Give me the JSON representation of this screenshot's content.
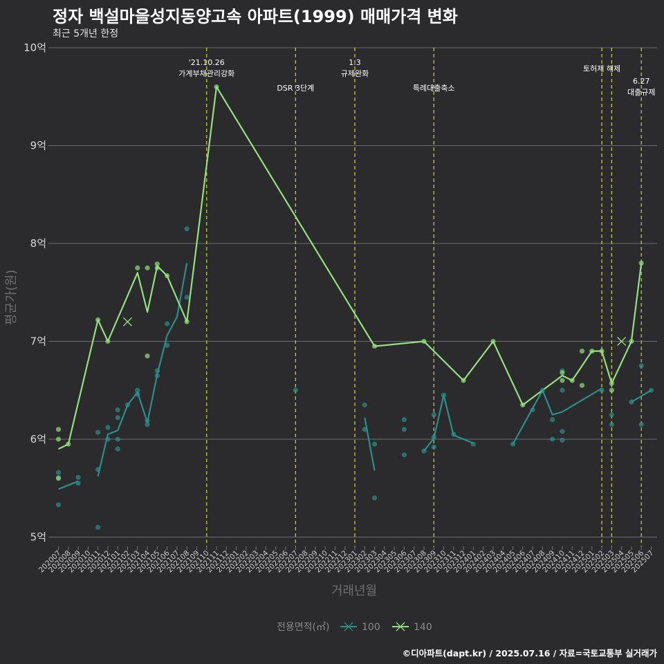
{
  "header": {
    "title": "정자 백설마을성지동양고속 아파트(1999) 매매가격 변화",
    "subtitle": "최근 5개년 한정"
  },
  "caption": "©디아파트(dapt.kr) / 2025.07.16 / 자료=국토교통부 실거래가",
  "chart_data": {
    "type": "line",
    "xlabel": "거래년월",
    "ylabel": "평균가(원)",
    "ylim": [
      4.85,
      10.0
    ],
    "y_ticks": [
      {
        "value": 5,
        "label": "5억"
      },
      {
        "value": 6,
        "label": "6억"
      },
      {
        "value": 7,
        "label": "7억"
      },
      {
        "value": 8,
        "label": "8억"
      },
      {
        "value": 9,
        "label": "9억"
      },
      {
        "value": 10,
        "label": "10억"
      }
    ],
    "categories": [
      "202007",
      "202008",
      "202009",
      "202010",
      "202011",
      "202012",
      "202101",
      "202102",
      "202103",
      "202104",
      "202105",
      "202106",
      "202107",
      "202108",
      "202109",
      "202110",
      "202111",
      "202112",
      "202201",
      "202202",
      "202203",
      "202204",
      "202205",
      "202206",
      "202207",
      "202208",
      "202209",
      "202210",
      "202211",
      "202212",
      "202301",
      "202302",
      "202303",
      "202304",
      "202305",
      "202306",
      "202307",
      "202308",
      "202309",
      "202310",
      "202311",
      "202312",
      "202401",
      "202402",
      "202403",
      "202404",
      "202405",
      "202406",
      "202407",
      "202408",
      "202409",
      "202410",
      "202411",
      "202412",
      "202501",
      "202502",
      "202503",
      "202504",
      "202505",
      "202506",
      "202507"
    ],
    "events": [
      {
        "date": "202110",
        "lines": [
          "'21.10.26",
          "가계부채관리강화"
        ],
        "level": 0
      },
      {
        "date": "202207",
        "lines": [
          "DSR 3단계"
        ],
        "level": 2
      },
      {
        "date": "202301",
        "lines": [
          "1.3",
          "규제완화"
        ],
        "level": 0
      },
      {
        "date": "202309",
        "lines": [
          "특례대출축소"
        ],
        "level": 2
      },
      {
        "date": "202502",
        "lines": [
          "토허제 해제"
        ],
        "level": 1
      },
      {
        "date": "202503",
        "lines": [],
        "level": 1
      },
      {
        "date": "202506",
        "lines": [
          "6.27",
          "대출규제"
        ],
        "level": 3
      }
    ],
    "series": [
      {
        "name": "100",
        "color": "#2a8f8c",
        "segments": [
          [
            [
              "202007",
              5.49
            ],
            [
              "202009",
              5.57
            ]
          ],
          [
            [
              "202011",
              5.62
            ],
            [
              "202012",
              6.05
            ],
            [
              "202101",
              6.09
            ],
            [
              "202102",
              6.35
            ],
            [
              "202103",
              6.48
            ],
            [
              "202104",
              6.17
            ],
            [
              "202105",
              6.66
            ],
            [
              "202106",
              7.06
            ],
            [
              "202107",
              7.25
            ],
            [
              "202108",
              7.8
            ]
          ],
          [
            [
              "202302",
              6.22
            ],
            [
              "202303",
              5.68
            ]
          ],
          [
            [
              "202308",
              5.88
            ],
            [
              "202309",
              6.01
            ],
            [
              "202310",
              6.45
            ],
            [
              "202311",
              6.04
            ],
            [
              "202401",
              5.96
            ]
          ],
          [
            [
              "202405",
              5.95
            ],
            [
              "202408",
              6.5
            ],
            [
              "202409",
              6.25
            ],
            [
              "202410",
              6.28
            ],
            [
              "202502",
              6.52
            ]
          ],
          [
            [
              "202503",
              6.2
            ]
          ],
          [
            [
              "202505",
              6.38
            ],
            [
              "202507",
              6.5
            ]
          ]
        ],
        "points": [
          [
            "202007",
            5.66
          ],
          [
            "202007",
            5.61
          ],
          [
            "202007",
            5.33
          ],
          [
            "202009",
            5.61
          ],
          [
            "202009",
            5.55
          ],
          [
            "202011",
            6.07
          ],
          [
            "202011",
            5.69
          ],
          [
            "202011",
            5.1
          ],
          [
            "202012",
            6.12
          ],
          [
            "202012",
            6.0
          ],
          [
            "202101",
            6.3
          ],
          [
            "202101",
            6.22
          ],
          [
            "202101",
            6.0
          ],
          [
            "202101",
            5.9
          ],
          [
            "202102",
            6.35
          ],
          [
            "202103",
            6.5
          ],
          [
            "202103",
            6.46
          ],
          [
            "202104",
            6.19
          ],
          [
            "202104",
            6.15
          ],
          [
            "202105",
            6.7
          ],
          [
            "202105",
            6.65
          ],
          [
            "202106",
            7.18
          ],
          [
            "202106",
            6.96
          ],
          [
            "202108",
            8.15
          ],
          [
            "202108",
            7.45
          ],
          [
            "202207",
            6.5
          ],
          [
            "202302",
            6.35
          ],
          [
            "202302",
            6.1
          ],
          [
            "202303",
            5.95
          ],
          [
            "202303",
            5.4
          ],
          [
            "202306",
            6.2
          ],
          [
            "202306",
            6.1
          ],
          [
            "202306",
            5.84
          ],
          [
            "202308",
            5.88
          ],
          [
            "202309",
            6.25
          ],
          [
            "202309",
            6.02
          ],
          [
            "202309",
            5.92
          ],
          [
            "202310",
            6.45
          ],
          [
            "202311",
            6.05
          ],
          [
            "202401",
            5.95
          ],
          [
            "202405",
            5.95
          ],
          [
            "202407",
            6.3
          ],
          [
            "202408",
            6.5
          ],
          [
            "202409",
            6.2
          ],
          [
            "202409",
            6.0
          ],
          [
            "202410",
            6.7
          ],
          [
            "202410",
            6.5
          ],
          [
            "202410",
            6.08
          ],
          [
            "202410",
            5.99
          ],
          [
            "202502",
            6.5
          ],
          [
            "202503",
            6.25
          ],
          [
            "202503",
            6.15
          ],
          [
            "202505",
            6.38
          ],
          [
            "202506",
            6.75
          ],
          [
            "202506",
            6.15
          ],
          [
            "202507",
            6.5
          ]
        ],
        "marker_x": []
      },
      {
        "name": "140",
        "color": "#93e07e",
        "segments": [
          [
            [
              "202007",
              5.9
            ],
            [
              "202008",
              5.95
            ],
            [
              "202011",
              7.22
            ],
            [
              "202012",
              7.0
            ],
            [
              "202103",
              7.7
            ],
            [
              "202104",
              7.3
            ],
            [
              "202105",
              7.77
            ],
            [
              "202106",
              7.67
            ],
            [
              "202108",
              7.2
            ],
            [
              "202111",
              9.6
            ],
            [
              "202303",
              6.95
            ],
            [
              "202308",
              7.0
            ],
            [
              "202312",
              6.6
            ],
            [
              "202403",
              7.0
            ],
            [
              "202406",
              6.35
            ],
            [
              "202410",
              6.65
            ],
            [
              "202411",
              6.6
            ],
            [
              "202501",
              6.9
            ],
            [
              "202502",
              6.9
            ],
            [
              "202503",
              6.57
            ],
            [
              "202505",
              7.0
            ],
            [
              "202506",
              7.8
            ]
          ]
        ],
        "points": [
          [
            "202007",
            6.1
          ],
          [
            "202007",
            6.0
          ],
          [
            "202007",
            5.6
          ],
          [
            "202008",
            5.95
          ],
          [
            "202011",
            7.22
          ],
          [
            "202012",
            7.0
          ],
          [
            "202103",
            7.75
          ],
          [
            "202104",
            7.75
          ],
          [
            "202104",
            6.85
          ],
          [
            "202105",
            7.79
          ],
          [
            "202105",
            7.75
          ],
          [
            "202106",
            7.67
          ],
          [
            "202108",
            7.2
          ],
          [
            "202111",
            9.6
          ],
          [
            "202303",
            6.95
          ],
          [
            "202308",
            7.0
          ],
          [
            "202312",
            6.6
          ],
          [
            "202403",
            7.0
          ],
          [
            "202406",
            6.35
          ],
          [
            "202410",
            6.68
          ],
          [
            "202410",
            6.6
          ],
          [
            "202411",
            6.6
          ],
          [
            "202412",
            6.9
          ],
          [
            "202412",
            6.55
          ],
          [
            "202501",
            6.9
          ],
          [
            "202502",
            6.9
          ],
          [
            "202503",
            6.57
          ],
          [
            "202503",
            6.5
          ],
          [
            "202505",
            7.0
          ],
          [
            "202506",
            7.8
          ]
        ],
        "marker_x": [
          [
            "202102",
            7.2
          ],
          [
            "202504",
            7.0
          ]
        ]
      }
    ],
    "legend": {
      "title": "전용면적(㎡)",
      "position": "bottom"
    },
    "grid": true
  }
}
